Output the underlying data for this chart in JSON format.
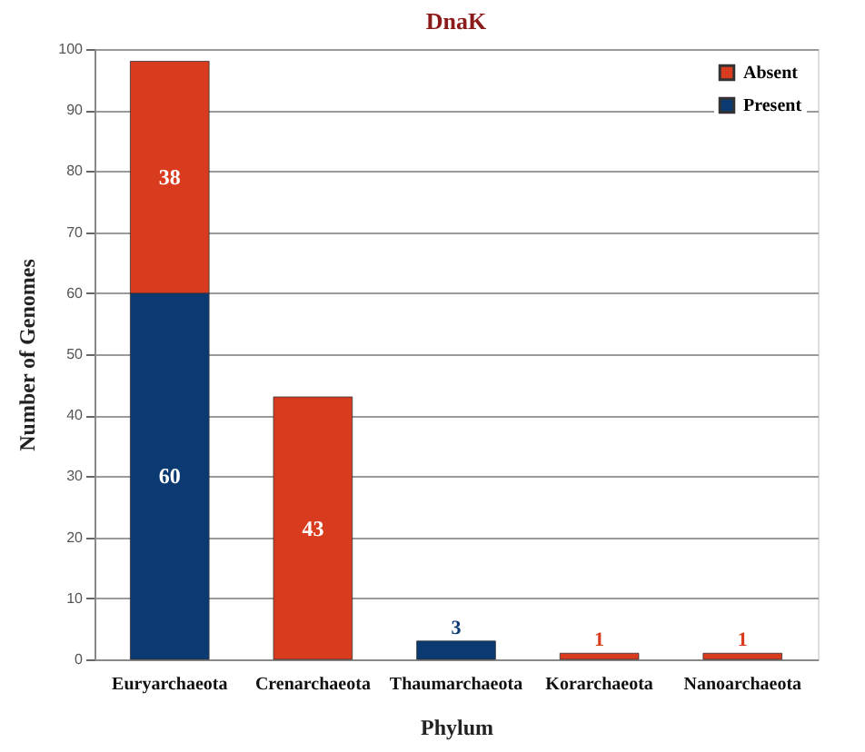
{
  "chart_data": {
    "type": "bar",
    "title": "DnaK",
    "xlabel": "Phylum",
    "ylabel": "Number of Genomes",
    "categories": [
      "Euryarchaeota",
      "Crenarchaeota",
      "Thaumarchaeota",
      "Korarchaeota",
      "Nanoarchaeota"
    ],
    "series": [
      {
        "name": "Present",
        "color": "#0b3a73",
        "values": [
          60,
          null,
          3,
          null,
          null
        ]
      },
      {
        "name": "Absent",
        "color": "#d83b1e",
        "values": [
          38,
          43,
          null,
          1,
          1
        ]
      }
    ],
    "stacked": true,
    "data_labels": true,
    "ylim": [
      0,
      100
    ],
    "yticks": [
      0,
      10,
      20,
      30,
      40,
      50,
      60,
      70,
      80,
      90,
      100
    ],
    "grid": "y",
    "legend": "top right"
  }
}
